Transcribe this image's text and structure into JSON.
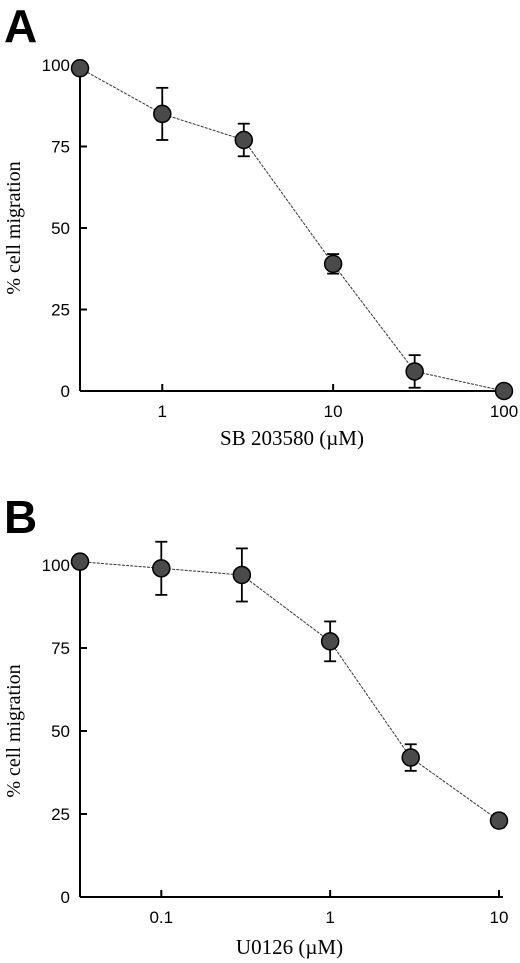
{
  "chart_data": [
    {
      "type": "scatter",
      "panel": "A",
      "xlabel": "SB 203580 (µM)",
      "ylabel": "% cell migration",
      "xscale": "log",
      "xlim": [
        0.33,
        100
      ],
      "ylim": [
        0,
        100
      ],
      "xticks": [
        1,
        10,
        100
      ],
      "xtick_labels": [
        "1",
        "10",
        "100"
      ],
      "yticks": [
        0,
        25,
        50,
        75,
        100
      ],
      "ytick_labels": [
        "0",
        "25",
        "50",
        "75",
        "100"
      ],
      "series": [
        {
          "x": [
            0.33,
            1,
            3,
            10,
            30,
            100
          ],
          "y": [
            99,
            85,
            77,
            39,
            6,
            0
          ],
          "err": [
            0,
            8,
            5,
            3,
            5,
            0
          ]
        }
      ]
    },
    {
      "type": "scatter",
      "panel": "B",
      "xlabel": "U0126 (µM)",
      "ylabel": "% cell migration",
      "xscale": "log",
      "xlim": [
        0.033,
        10
      ],
      "ylim": [
        0,
        100
      ],
      "xticks": [
        0.1,
        1,
        10
      ],
      "xtick_labels": [
        "0.1",
        "1",
        "10"
      ],
      "yticks": [
        0,
        25,
        50,
        75,
        100
      ],
      "ytick_labels": [
        "0",
        "25",
        "50",
        "75",
        "100"
      ],
      "series": [
        {
          "x": [
            0.033,
            0.1,
            0.3,
            1,
            3,
            10
          ],
          "y": [
            101,
            99,
            97,
            77,
            42,
            23
          ],
          "err": [
            0,
            8,
            8,
            6,
            4,
            2
          ]
        }
      ]
    }
  ]
}
